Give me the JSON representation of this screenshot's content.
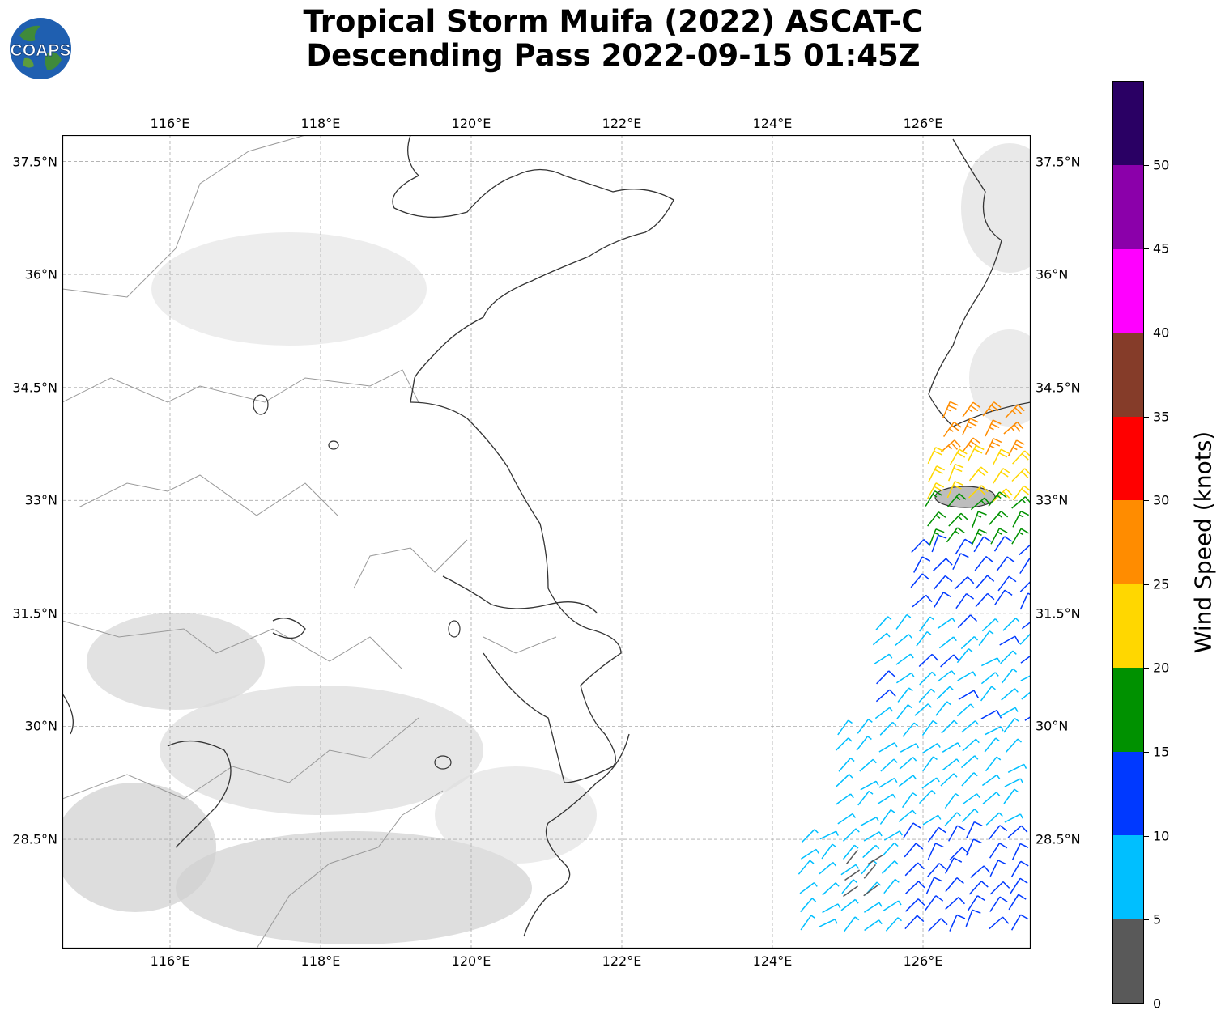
{
  "title": {
    "line1": "Tropical Storm Muifa (2022) ASCAT-C",
    "line2": "Descending Pass 2022-09-15 01:45Z"
  },
  "logo": {
    "text": "COAPS",
    "icon": "globe-icon"
  },
  "map": {
    "lon_range": [
      114.57,
      127.43
    ],
    "lat_range": [
      27.05,
      37.85
    ],
    "lon_ticks": [
      "116°E",
      "118°E",
      "120°E",
      "122°E",
      "124°E",
      "126°E"
    ],
    "lat_ticks": [
      "37.5°N",
      "36°N",
      "34.5°N",
      "33°N",
      "31.5°N",
      "30°N",
      "28.5°N"
    ],
    "gridlines": true,
    "colors": {
      "coastline": "#333333",
      "borders": "#999999",
      "grid": "#aaaaaa"
    }
  },
  "colorbar": {
    "label": "Wind Speed (knots)",
    "ticks": [
      "0",
      "5",
      "10",
      "15",
      "20",
      "25",
      "30",
      "35",
      "40",
      "45",
      "50"
    ],
    "bins": [
      {
        "min": 0,
        "max": 5,
        "color": "#595959"
      },
      {
        "min": 5,
        "max": 10,
        "color": "#00bfff"
      },
      {
        "min": 10,
        "max": 15,
        "color": "#0039ff"
      },
      {
        "min": 15,
        "max": 20,
        "color": "#009100"
      },
      {
        "min": 20,
        "max": 25,
        "color": "#ffd700"
      },
      {
        "min": 25,
        "max": 30,
        "color": "#ff8c00"
      },
      {
        "min": 30,
        "max": 35,
        "color": "#ff0000"
      },
      {
        "min": 35,
        "max": 40,
        "color": "#853c29"
      },
      {
        "min": 40,
        "max": 45,
        "color": "#ff00ff"
      },
      {
        "min": 45,
        "max": 50,
        "color": "#8b00aa"
      },
      {
        "min": 50,
        "max": 55,
        "color": "#2a0064"
      }
    ]
  },
  "wind_regions": [
    {
      "lat_min": 33.6,
      "lat_max": 34.2,
      "lon_min": 126.2,
      "lon_max": 127.4,
      "speed": 27
    },
    {
      "lat_min": 33.0,
      "lat_max": 33.6,
      "lon_min": 126.0,
      "lon_max": 127.4,
      "speed": 22
    },
    {
      "lat_min": 32.4,
      "lat_max": 33.0,
      "lon_min": 126.0,
      "lon_max": 127.4,
      "speed": 18
    },
    {
      "lat_min": 31.4,
      "lat_max": 32.4,
      "lon_min": 125.8,
      "lon_max": 127.4,
      "speed": 13
    },
    {
      "lat_min": 30.0,
      "lat_max": 31.4,
      "lon_min": 125.3,
      "lon_max": 127.4,
      "speed": 9
    },
    {
      "lat_min": 28.6,
      "lat_max": 30.0,
      "lon_min": 124.8,
      "lon_max": 127.4,
      "speed": 8
    },
    {
      "lat_min": 27.1,
      "lat_max": 28.6,
      "lon_min": 124.3,
      "lon_max": 125.6,
      "speed": 8
    },
    {
      "lat_min": 27.5,
      "lat_max": 28.3,
      "lon_min": 124.9,
      "lon_max": 125.5,
      "speed": 3
    },
    {
      "lat_min": 27.1,
      "lat_max": 28.6,
      "lon_min": 125.7,
      "lon_max": 127.4,
      "speed": 13
    }
  ]
}
